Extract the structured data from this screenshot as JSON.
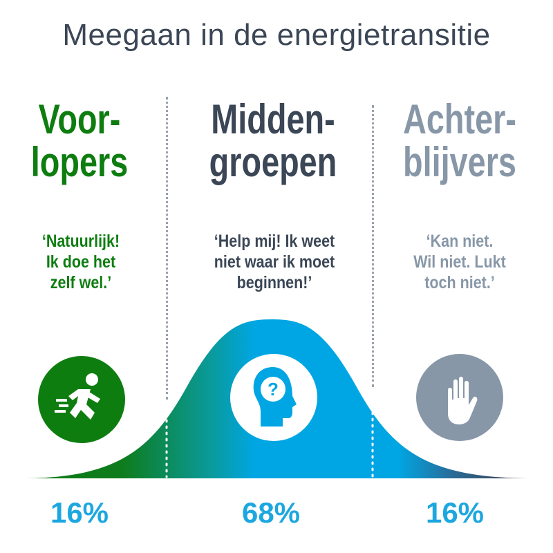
{
  "title": "Meegaan in de energietransitie",
  "colors": {
    "title": "#3b4656",
    "voorlopers": "#0e7d10",
    "middengroepen": "#3b4656",
    "achterblijvers": "#8797a8",
    "percent": "#1da7e0",
    "curve_blue": "#00a6e3",
    "curve_green": "#117b1a",
    "curve_dark": "#3b4656"
  },
  "segments": [
    {
      "key": "voorlopers",
      "heading_lines": [
        "Voor-",
        "lopers"
      ],
      "quote_lines": [
        "‘Natuurlijk!",
        "Ik doe het",
        "zelf wel.’"
      ],
      "icon": "running-person-icon",
      "percent": "16%"
    },
    {
      "key": "middengroepen",
      "heading_lines": [
        "Midden-",
        "groepen"
      ],
      "quote_lines": [
        "‘Help mij! Ik weet",
        "niet waar ik moet",
        "beginnen!’"
      ],
      "icon": "head-question-icon",
      "percent": "68%"
    },
    {
      "key": "achterblijvers",
      "heading_lines": [
        "Achter-",
        "blijvers"
      ],
      "quote_lines": [
        "‘Kan niet.",
        "Wil niet. Lukt",
        "toch niet.’"
      ],
      "icon": "stop-hand-icon",
      "percent": "16%"
    }
  ]
}
